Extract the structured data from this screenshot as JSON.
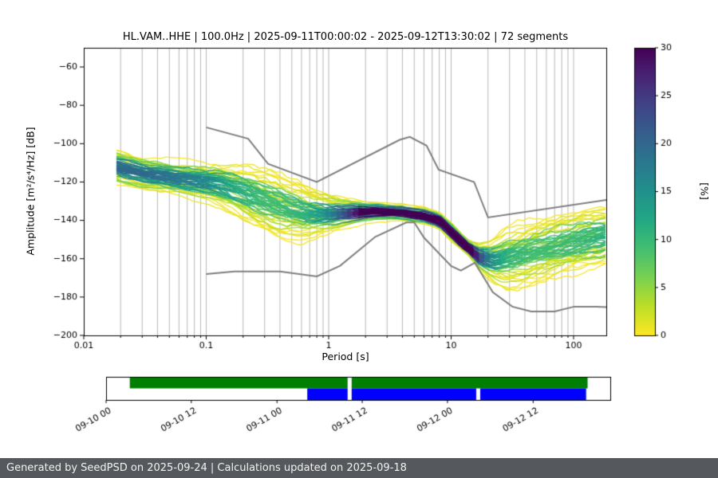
{
  "footer": {
    "text": "Generated by SeedPSD on 2025-09-24 | Calculations updated on 2025-09-18"
  },
  "chart_data": {
    "type": "heatmap",
    "subtype": "ppsd-probability-density",
    "title": "HL.VAM..HHE | 100.0Hz | 2025-09-11T00:00:02 - 2025-09-12T13:30:02 | 72 segments",
    "xlabel": "Period [s]",
    "ylabel": "Amplitude [m²/s⁴/Hz] [dB]",
    "x_axis": {
      "label": "Period [s]",
      "scale": "log",
      "min": 0.01,
      "max": 185,
      "major_ticks": [
        {
          "v": 0.01,
          "label": "0.01"
        },
        {
          "v": 0.1,
          "label": "0.1"
        },
        {
          "v": 1,
          "label": "1"
        },
        {
          "v": 10,
          "label": "10"
        },
        {
          "v": 100,
          "label": "100"
        }
      ]
    },
    "y_axis": {
      "label": "Amplitude [m²/s⁴/Hz] [dB]",
      "min": -200,
      "max": -50,
      "ticks": [
        {
          "v": -60,
          "label": "−60"
        },
        {
          "v": -80,
          "label": "−80"
        },
        {
          "v": -100,
          "label": "−100"
        },
        {
          "v": -120,
          "label": "−120"
        },
        {
          "v": -140,
          "label": "−140"
        },
        {
          "v": -160,
          "label": "−160"
        },
        {
          "v": -180,
          "label": "−180"
        },
        {
          "v": -200,
          "label": "−200"
        }
      ]
    },
    "grid": {
      "vertical": true,
      "color": "#b0b0b0"
    },
    "colorbar": {
      "label": "[%]",
      "min": 0,
      "max": 30,
      "ticks": [
        0,
        5,
        10,
        15,
        20,
        25,
        30
      ],
      "colormap": "viridis_r",
      "stops": [
        [
          0.0,
          "#440154"
        ],
        [
          0.1,
          "#482475"
        ],
        [
          0.2,
          "#414487"
        ],
        [
          0.3,
          "#355f8d"
        ],
        [
          0.4,
          "#2a788e"
        ],
        [
          0.5,
          "#21918c"
        ],
        [
          0.6,
          "#22a884"
        ],
        [
          0.7,
          "#44bf70"
        ],
        [
          0.8,
          "#7ad151"
        ],
        [
          0.9,
          "#bddf26"
        ],
        [
          1.0,
          "#fde725"
        ]
      ]
    },
    "noise_models": {
      "color": "#7f7f7f",
      "high": {
        "periods": [
          0.1,
          0.22,
          0.32,
          0.8,
          3.8,
          4.6,
          6.3,
          7.9,
          15.4,
          20.0,
          185.0
        ],
        "db": [
          -91.5,
          -97.4,
          -110.5,
          -120.0,
          -98.0,
          -96.5,
          -101.0,
          -113.5,
          -120.0,
          -138.5,
          -129.4
        ]
      },
      "low": {
        "periods": [
          0.1,
          0.17,
          0.4,
          0.8,
          1.24,
          2.4,
          4.3,
          5.0,
          6.0,
          10.0,
          12.0,
          15.6,
          21.9,
          31.6,
          45.0,
          70.0,
          101.0,
          154.0,
          185.0
        ],
        "db": [
          -168.0,
          -166.7,
          -166.7,
          -169.2,
          -163.7,
          -148.6,
          -141.1,
          -141.1,
          -149.0,
          -163.8,
          -166.2,
          -162.1,
          -177.5,
          -185.0,
          -187.5,
          -187.5,
          -185.0,
          -185.0,
          -185.2
        ]
      }
    },
    "psd_cloud": {
      "segments": 72,
      "backbone": {
        "periods": [
          0.018,
          0.03,
          0.05,
          0.08,
          0.12,
          0.2,
          0.3,
          0.45,
          0.7,
          1.0,
          1.5,
          2.5,
          4.0,
          6.0,
          8.0,
          10,
          13,
          17,
          22,
          30,
          45,
          70,
          100,
          150,
          185
        ],
        "db": [
          -112,
          -115.5,
          -117.5,
          -119,
          -121,
          -126,
          -130,
          -133.5,
          -135.8,
          -136.3,
          -136,
          -135.5,
          -136,
          -137.5,
          -140,
          -146,
          -153,
          -159,
          -161,
          -159.5,
          -157,
          -154,
          -151.5,
          -149,
          -148
        ]
      },
      "spread": {
        "periods": [
          0.018,
          0.03,
          0.06,
          0.1,
          0.2,
          0.35,
          0.6,
          0.9,
          1.3,
          2.0,
          3.5,
          6.0,
          8.0,
          10,
          14,
          20,
          30,
          50,
          100,
          185
        ],
        "db": [
          4.5,
          4.5,
          5,
          5.5,
          8,
          9.5,
          8.5,
          6,
          4,
          2.6,
          2.2,
          2.5,
          2.6,
          2.8,
          2.2,
          5,
          8.5,
          9.5,
          9,
          8
        ]
      }
    },
    "timeline": {
      "tick_labels": [
        "09-10 00",
        "09-10 12",
        "09-11 00",
        "09-11 12",
        "09-12 00",
        "09-12 12"
      ],
      "tick_positions": [
        0,
        0.169,
        0.339,
        0.508,
        0.677,
        0.847
      ],
      "available_color": "#008000",
      "processed_color": "#0000ff",
      "available_segments": [
        [
          0.047,
          0.479
        ],
        [
          0.487,
          0.955
        ]
      ],
      "processed_segments": [
        [
          0.399,
          0.479
        ],
        [
          0.487,
          0.734
        ],
        [
          0.742,
          0.952
        ]
      ]
    }
  }
}
